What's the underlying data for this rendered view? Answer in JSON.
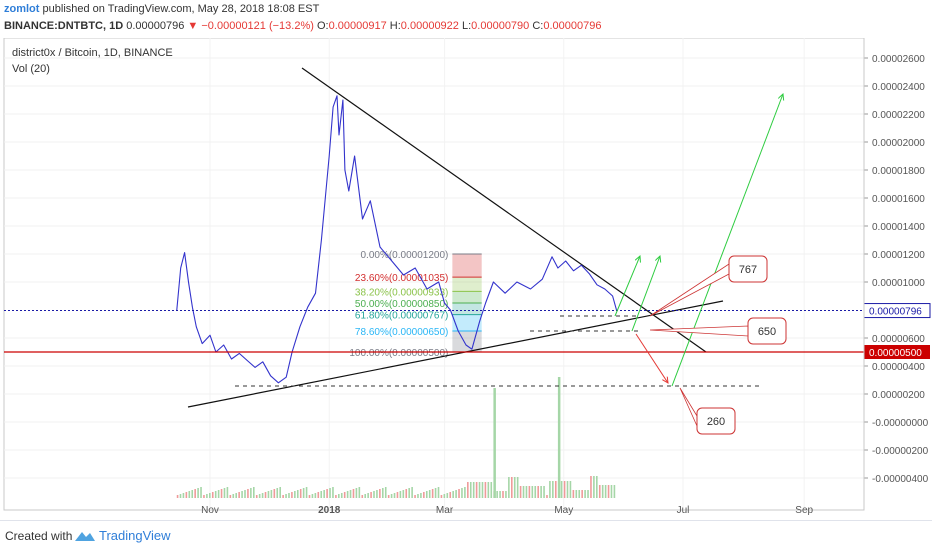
{
  "header": {
    "author": "zomlot",
    "published_text": "published on TradingView.com, May 28, 2018 18:08 EST",
    "symbol_line": "BINANCE:DNTBTC, 1D",
    "last_price": "0.00000796",
    "change_arrow": "▼",
    "change": "−0.00000121 (−13.2%)",
    "o_label": "O:",
    "o_value": "0.00000917",
    "h_label": "H:",
    "h_value": "0.00000922",
    "l_label": "L:",
    "l_value": "0.00000790",
    "c_label": "C:",
    "c_value": "0.00000796"
  },
  "footer": {
    "created_with": "Created with",
    "brand": "TradingView"
  },
  "colors": {
    "price_line": "#3333cc",
    "red": "#cc0000",
    "arrow_green": "#2ecc40",
    "arrow_red": "#e53935",
    "volume_green": "#a5d6a7",
    "volume_red": "#ef9a9a"
  },
  "chart_data": {
    "type": "line",
    "title": "district0x / Bitcoin, 1D, BINANCE",
    "indicator": "Vol (20)",
    "x_labels": [
      "Nov",
      "2018",
      "Mar",
      "May",
      "Jul",
      "Sep"
    ],
    "y_ticks": [
      "0.00002600",
      "0.00002400",
      "0.00002200",
      "0.00002000",
      "0.00001800",
      "0.00001600",
      "0.00001400",
      "0.00001200",
      "0.00001000",
      "0.00000600",
      "0.00000400",
      "0.00000200",
      "-0.00000000",
      "-0.00000200",
      "-0.00000400"
    ],
    "ylim": [
      -5.3e-06,
      2.75e-05
    ],
    "price_label": "0.00000796",
    "price_value": 7.96e-06,
    "level_label": "0.00000500",
    "level_value": 5e-06,
    "series": [
      {
        "x": [
          "2017-10-15",
          "2017-10-17",
          "2017-10-19",
          "2017-10-21",
          "2017-10-23",
          "2017-10-25",
          "2017-10-28",
          "2017-11-01",
          "2017-11-04",
          "2017-11-08",
          "2017-11-12",
          "2017-11-16",
          "2017-11-20",
          "2017-11-24",
          "2017-11-28",
          "2017-12-02",
          "2017-12-06",
          "2017-12-10",
          "2017-12-13",
          "2017-12-17",
          "2017-12-21",
          "2017-12-25",
          "2017-12-28",
          "2018-01-01",
          "2018-01-03",
          "2018-01-05",
          "2018-01-06",
          "2018-01-08",
          "2018-01-09",
          "2018-01-11",
          "2018-01-14",
          "2018-01-18",
          "2018-01-22",
          "2018-01-27",
          "2018-02-02",
          "2018-02-08",
          "2018-02-14",
          "2018-02-20",
          "2018-02-26",
          "2018-03-01",
          "2018-03-04",
          "2018-03-08",
          "2018-03-12",
          "2018-03-15",
          "2018-03-19",
          "2018-03-22",
          "2018-03-26",
          "2018-04-01",
          "2018-04-07",
          "2018-04-14",
          "2018-04-20",
          "2018-04-25",
          "2018-04-28",
          "2018-05-02",
          "2018-05-06",
          "2018-05-10",
          "2018-05-14",
          "2018-05-18",
          "2018-05-22",
          "2018-05-26",
          "2018-05-28"
        ],
        "values": [
          8e-06,
          1.1e-05,
          1.21e-05,
          1e-05,
          8.2e-06,
          6.8e-06,
          5.6e-06,
          6.2e-06,
          5e-06,
          5.5e-06,
          4.5e-06,
          4.9e-06,
          4.4e-06,
          3.9e-06,
          4.3e-06,
          3.3e-06,
          2.8e-06,
          3.2e-06,
          5e-06,
          6.8e-06,
          8.2e-06,
          9.2e-06,
          1.3e-05,
          1.9e-05,
          2.25e-05,
          2.33e-05,
          2.05e-05,
          2.3e-05,
          1.8e-05,
          1.65e-05,
          1.9e-05,
          1.45e-05,
          1.58e-05,
          1.25e-05,
          1.15e-05,
          1.05e-05,
          1.1e-05,
          9.5e-06,
          1e-05,
          8.5e-06,
          8e-06,
          6.5e-06,
          5.5e-06,
          5.2e-06,
          7.2e-06,
          8.5e-06,
          1e-05,
          9.2e-06,
          1e-05,
          9.5e-06,
          1.02e-05,
          1.18e-05,
          1.1e-05,
          1.15e-05,
          1.08e-05,
          1.12e-05,
          1.06e-05,
          9.8e-06,
          9.5e-06,
          9e-06,
          8e-06
        ]
      }
    ],
    "fibonacci": [
      {
        "label": "0.00%(0.00001200)",
        "color": "#787b86"
      },
      {
        "label": "23.60%(0.00001035)",
        "color": "#d32f2f"
      },
      {
        "label": "38.20%(0.00000933)",
        "color": "#8bc34a"
      },
      {
        "label": "50.00%(0.00000850)",
        "color": "#4caf50"
      },
      {
        "label": "61.80%(0.00000767)",
        "color": "#26a69a"
      },
      {
        "label": "78.60%(0.00000650)",
        "color": "#29b6f6"
      },
      {
        "label": "100.00%(0.00000500)",
        "color": "#787b86"
      }
    ],
    "fib_values": [
      1.2e-05,
      1.035e-05,
      9.33e-06,
      8.5e-06,
      7.67e-06,
      6.5e-06,
      5e-06
    ],
    "callouts": [
      "767",
      "650",
      "260"
    ],
    "volume_spikes": [
      {
        "x": "2018-03-26",
        "value": 2e-06
      },
      {
        "x": "2018-04-28",
        "value": 2.2e-06
      }
    ]
  }
}
